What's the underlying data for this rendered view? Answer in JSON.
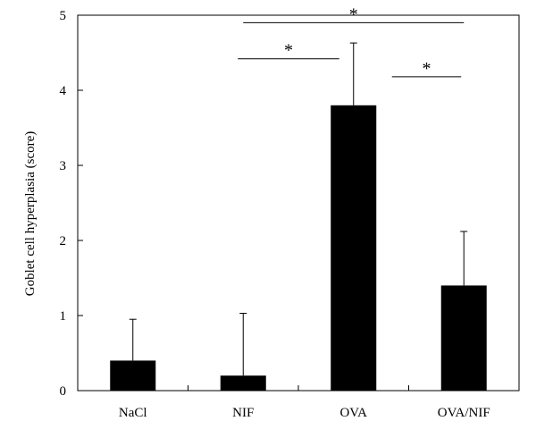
{
  "chart_data": {
    "type": "bar",
    "title": "",
    "xlabel": "",
    "ylabel": "Goblet cell hyperplasia (score)",
    "categories": [
      "NaCl",
      "NIF",
      "OVA",
      "OVA/NIF"
    ],
    "values": [
      0.4,
      0.2,
      3.8,
      1.4
    ],
    "error_upper": [
      0.55,
      0.83,
      0.83,
      0.72
    ],
    "ylim": [
      0,
      5
    ],
    "yticks": [
      0,
      1,
      2,
      3,
      4,
      5
    ],
    "ytick_labels": [
      "0",
      "1",
      "2",
      "3",
      "4",
      "5"
    ],
    "bar_color": "#000000",
    "grid": false,
    "legend": "none",
    "significance": [
      {
        "from": "NIF",
        "to": "OVA",
        "label": "*"
      },
      {
        "from": "NIF",
        "to": "OVA/NIF",
        "label": "*"
      },
      {
        "from": "OVA",
        "to": "OVA/NIF",
        "label": "*"
      }
    ]
  }
}
